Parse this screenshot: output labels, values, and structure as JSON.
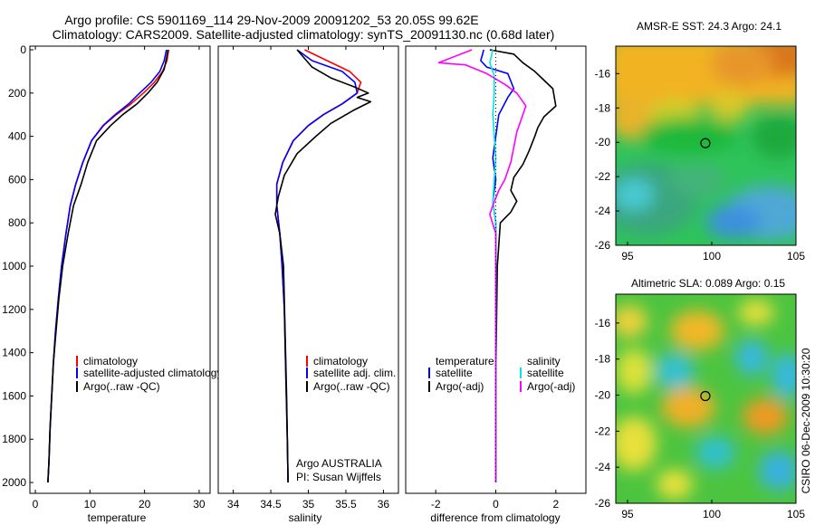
{
  "header": {
    "line1": "Argo profile: CS 5901169_114 29-Nov-2009 20091202_53 20.05S 99.62E",
    "line2": "Climatology: CARS2009. Satellite-adjusted climatology: synTS_20091130.nc (0.68d later)"
  },
  "side_label": "CSIRO 06-Dec-2009 10:30:20",
  "colors": {
    "clim": "#ff0000",
    "sat": "#0000ff",
    "argo": "#000000",
    "sal_sat": "#00e5e5",
    "sal_argo": "#ff00ff"
  },
  "chart_data": [
    {
      "id": "temperature",
      "type": "line",
      "xlabel": "temperature",
      "xlim": [
        -1,
        32
      ],
      "ylim": [
        0,
        2050
      ],
      "xticks": [
        0,
        10,
        20,
        30
      ],
      "yticks": [
        0,
        200,
        400,
        600,
        800,
        1000,
        1200,
        1400,
        1600,
        1800,
        2000
      ],
      "ytick_labels": [
        "0",
        "200",
        "400",
        "600",
        "800",
        "1000",
        "1200",
        "1400",
        "1600",
        "1800",
        "2000"
      ],
      "legend": [
        "climatology",
        "satellite-adjusted climatology",
        "Argo(..raw -QC)"
      ],
      "series": [
        {
          "name": "climatology",
          "color": "#ff0000",
          "x": [
            24.4,
            24.1,
            23.3,
            21.8,
            19.8,
            17.5,
            14.8,
            12.5,
            10.3,
            8.7,
            7.4,
            6.4,
            5.6,
            4.8,
            4.2,
            3.7,
            3.3,
            3.0,
            2.7,
            2.5,
            2.3
          ],
          "y": [
            0,
            50,
            100,
            150,
            200,
            250,
            300,
            350,
            420,
            520,
            620,
            720,
            850,
            1000,
            1150,
            1300,
            1450,
            1600,
            1750,
            1900,
            2000
          ]
        },
        {
          "name": "satellite-adjusted climatology",
          "color": "#0000ff",
          "x": [
            24.0,
            23.6,
            22.8,
            21.2,
            19.1,
            17.1,
            14.6,
            12.4,
            10.3,
            8.7,
            7.4,
            6.4,
            5.6,
            4.8,
            4.2,
            3.7,
            3.3,
            3.0,
            2.7,
            2.5,
            2.3
          ],
          "y": [
            0,
            50,
            100,
            150,
            200,
            250,
            300,
            350,
            420,
            520,
            620,
            720,
            850,
            1000,
            1150,
            1300,
            1450,
            1600,
            1750,
            1900,
            2000
          ]
        },
        {
          "name": "Argo(..raw -QC)",
          "color": "#000000",
          "x": [
            24.3,
            24.0,
            23.6,
            22.3,
            20.6,
            18.6,
            16.0,
            13.8,
            11.2,
            9.6,
            8.4,
            7.0,
            6.0,
            5.0,
            4.3,
            3.8,
            3.3,
            3.0,
            2.7,
            2.5,
            2.3
          ],
          "y": [
            0,
            40,
            90,
            150,
            200,
            250,
            300,
            350,
            420,
            520,
            620,
            720,
            850,
            1000,
            1150,
            1300,
            1450,
            1600,
            1750,
            1900,
            2000
          ]
        }
      ]
    },
    {
      "id": "salinity",
      "type": "line",
      "xlabel": "salinity",
      "xlim": [
        33.8,
        36.2
      ],
      "ylim": [
        0,
        2050
      ],
      "xticks": [
        34,
        34.5,
        35,
        35.5,
        36
      ],
      "legend": [
        "climatology",
        "satellite adj. clim.",
        "Argo(..raw -QC)"
      ],
      "annotation": [
        "Argo AUSTRALIA",
        "PI: Susan Wijffels"
      ],
      "series": [
        {
          "name": "climatology",
          "color": "#ff0000",
          "x": [
            34.95,
            35.25,
            35.55,
            35.7,
            35.65,
            35.45,
            35.2,
            35.0,
            34.8,
            34.66,
            34.58,
            34.58,
            34.62,
            34.65,
            34.68,
            34.7,
            34.72,
            34.73
          ],
          "y": [
            0,
            50,
            100,
            150,
            200,
            250,
            300,
            350,
            420,
            520,
            620,
            720,
            850,
            1000,
            1200,
            1500,
            1800,
            2000
          ]
        },
        {
          "name": "satellite adj. clim.",
          "color": "#0000ff",
          "x": [
            34.85,
            35.05,
            35.45,
            35.62,
            35.65,
            35.45,
            35.2,
            35.0,
            34.8,
            34.66,
            34.58,
            34.58,
            34.62,
            34.65,
            34.68,
            34.7,
            34.72,
            34.73
          ],
          "y": [
            0,
            50,
            100,
            150,
            200,
            250,
            300,
            350,
            420,
            520,
            620,
            720,
            850,
            1000,
            1200,
            1500,
            1800,
            2000
          ]
        },
        {
          "name": "Argo(..raw -QC)",
          "color": "#000000",
          "x": [
            34.85,
            34.95,
            35.05,
            35.3,
            35.6,
            35.8,
            35.65,
            35.83,
            35.6,
            35.3,
            35.1,
            34.85,
            34.68,
            34.6,
            34.56,
            34.62,
            34.67,
            34.69,
            34.71,
            34.73
          ],
          "y": [
            0,
            40,
            80,
            130,
            170,
            200,
            220,
            240,
            280,
            340,
            400,
            480,
            580,
            680,
            760,
            850,
            1000,
            1300,
            1600,
            2000
          ]
        }
      ]
    },
    {
      "id": "difference",
      "type": "line",
      "xlabel": "difference from climatology",
      "xlim": [
        -3,
        3
      ],
      "ylim": [
        0,
        2050
      ],
      "xticks": [
        -2,
        0,
        2
      ],
      "legend_left": [
        "temperature",
        "satellite",
        "Argo(-adj)"
      ],
      "legend_right": [
        "salinity",
        "satellite",
        "Argo(-adj)"
      ],
      "series": [
        {
          "name": "temperature satellite",
          "color": "#0000ff",
          "x": [
            -0.4,
            -0.5,
            -0.3,
            0.4,
            0.6,
            0.4,
            0.1,
            0.0,
            -0.1,
            0.0,
            -0.1,
            0.0,
            0.0,
            0.0,
            0.0
          ],
          "y": [
            0,
            50,
            80,
            110,
            180,
            220,
            300,
            400,
            500,
            600,
            700,
            800,
            1000,
            1500,
            2000
          ]
        },
        {
          "name": "temperature Argo(-adj)",
          "color": "#000000",
          "x": [
            -0.2,
            0.6,
            0.9,
            1.3,
            1.6,
            1.9,
            2.0,
            1.6,
            1.4,
            1.3,
            1.1,
            0.9,
            0.6,
            0.5,
            0.7,
            0.5,
            0.15,
            0.05,
            0.0,
            0.0
          ],
          "y": [
            0,
            20,
            60,
            100,
            140,
            180,
            260,
            310,
            360,
            400,
            470,
            530,
            590,
            650,
            700,
            750,
            800,
            1000,
            1500,
            2000
          ]
        },
        {
          "name": "salinity satellite",
          "color": "#00e5e5",
          "x": [
            -0.1,
            -0.2,
            -0.05,
            -0.05,
            -0.1,
            -0.05,
            0.0,
            -0.05,
            -0.1,
            0.0,
            0.0,
            0.0,
            0.0
          ],
          "y": [
            0,
            60,
            120,
            200,
            300,
            400,
            500,
            600,
            700,
            800,
            1000,
            1500,
            2000
          ]
        },
        {
          "name": "salinity Argo(-adj)",
          "color": "#ff00ff",
          "x": [
            -0.8,
            -1.9,
            -1.0,
            -0.3,
            0.3,
            0.7,
            1.0,
            0.9,
            0.7,
            0.6,
            0.5,
            0.3,
            0.1,
            -0.1,
            -0.2,
            0.0,
            0.0,
            0.0
          ],
          "y": [
            0,
            60,
            70,
            110,
            160,
            200,
            260,
            300,
            380,
            450,
            520,
            600,
            650,
            720,
            760,
            850,
            1200,
            2000
          ]
        },
        {
          "name": "zero reference",
          "color": "#000000",
          "dotted": true,
          "x": [
            0,
            0
          ],
          "y": [
            0,
            2000
          ]
        }
      ]
    },
    {
      "id": "sst-map",
      "type": "heatmap",
      "title": "AMSR-E SST: 24.3 Argo: 24.1",
      "xlim": [
        94.3,
        105
      ],
      "ylim": [
        -26,
        -14.4
      ],
      "xticks": [
        95,
        100,
        105
      ],
      "yticks": [
        -16,
        -18,
        -20,
        -22,
        -24,
        -26
      ],
      "marker": [
        99.62,
        -20.05
      ]
    },
    {
      "id": "sla-map",
      "type": "heatmap",
      "title": "Altimetric SLA: 0.089 Argo: 0.15",
      "xlim": [
        94.3,
        105
      ],
      "ylim": [
        -26,
        -14.4
      ],
      "xticks": [
        95,
        100,
        105
      ],
      "yticks": [
        -16,
        -18,
        -20,
        -22,
        -24,
        -26
      ],
      "marker": [
        99.62,
        -20.05
      ]
    }
  ]
}
